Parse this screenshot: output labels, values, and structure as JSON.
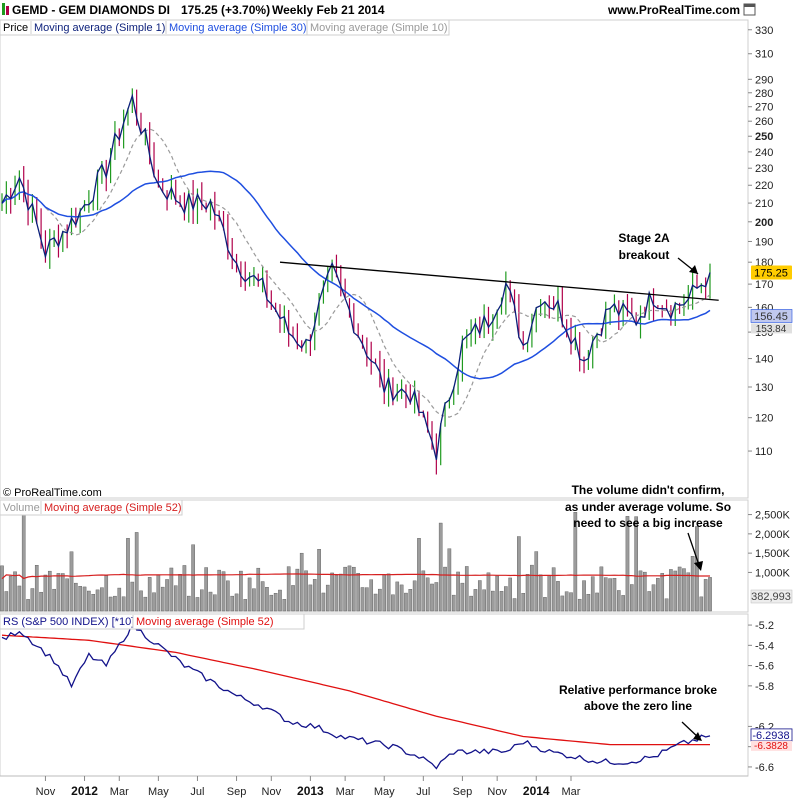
{
  "header": {
    "symbol_line": "GEMD - GEM DIAMONDS DI",
    "price_change": "175.25 (+3.70%)",
    "period_date": "Weekly  Feb 21 2014",
    "site": "www.ProRealTime.com",
    "copyright": "© ProRealTime.com"
  },
  "colors": {
    "up_bar": "#1f9a1f",
    "down_bar": "#b0004a",
    "sma1": "#0b1f7a",
    "sma30": "#1f4fe0",
    "sma10": "#9a9a9a",
    "trendline": "#000000",
    "volume_bar": "#9c9c9c",
    "volume_ma": "#d62020",
    "rs_line": "#12128a",
    "rs_ma": "#e01010",
    "price_badge": "#ffcc00",
    "ma_badge": "#c0c8ee"
  },
  "chart_data": [
    {
      "type": "candlestick",
      "panel": "price",
      "legend": [
        "Price",
        "Moving average (Simple 1)",
        "Moving average (Simple 30)",
        "Moving average (Simple 10)"
      ],
      "y_ticks": [
        110,
        120,
        130,
        140,
        150,
        160,
        170,
        180,
        190,
        200,
        210,
        220,
        230,
        240,
        250,
        260,
        270,
        280,
        290,
        310,
        330
      ],
      "y_tick_labels": [
        "110",
        "120",
        "130",
        "140",
        "150",
        "160",
        "170",
        "180",
        "190",
        "200",
        "210",
        "220",
        "230",
        "240",
        "250",
        "260",
        "270",
        "280",
        "290",
        "310",
        "330"
      ],
      "ylim": [
        102,
        335
      ],
      "scale": "log",
      "last_price": "175.25",
      "sma30_last": "156.45",
      "sma10_last": "153.84",
      "key_points": {
        "x_week": [
          0,
          4,
          10,
          18,
          24,
          30,
          36,
          42,
          48,
          54,
          60,
          66,
          70,
          76,
          82,
          88,
          94,
          100,
          106,
          112,
          116,
          120,
          124,
          128,
          134,
          140,
          146,
          150,
          154,
          158,
          163
        ],
        "close": [
          210,
          225,
          185,
          205,
          230,
          275,
          220,
          210,
          210,
          180,
          168,
          150,
          145,
          175,
          150,
          130,
          128,
          110,
          145,
          155,
          170,
          145,
          165,
          160,
          140,
          160,
          155,
          165,
          160,
          163,
          175.25
        ]
      },
      "trendline": {
        "from_week": 64,
        "from_value": 180,
        "to_week": 165,
        "to_value": 163
      },
      "annotation": "Stage 2A\nbreakout"
    },
    {
      "type": "bar",
      "panel": "volume",
      "legend": [
        "Volume",
        "Moving average (Simple 52)"
      ],
      "y_ticks": [
        1000000,
        1500000,
        2000000,
        2500000
      ],
      "y_tick_labels": [
        "1,000K",
        "1,500K",
        "2,000K",
        "2,500K"
      ],
      "ylim": [
        0,
        2800000
      ],
      "last_volume_label": "382,993",
      "volume_ma_level": 950000,
      "annotation": "The volume didn't confirm,\nas under average volume. So\nneed to see a big increase"
    },
    {
      "type": "line",
      "panel": "relative-strength",
      "legend": [
        "RS (S&P 500 INDEX) [*10]",
        "Moving average (Simple 52)"
      ],
      "y_ticks": [
        -6.6,
        -6.4,
        -6.2,
        -5.8,
        -5.6,
        -5.4,
        -5.2
      ],
      "y_tick_labels": [
        "-6.6",
        "-6.4",
        "-6.2",
        "-5.8",
        "-5.6",
        "-5.4",
        "-5.2"
      ],
      "ylim": [
        -6.65,
        -5.15
      ],
      "last_rs": "-6.2938",
      "last_rs_ma": "-6.3828",
      "rs_key_points": {
        "x_week": [
          0,
          4,
          8,
          12,
          16,
          20,
          24,
          30,
          36,
          42,
          48,
          54,
          60,
          66,
          72,
          78,
          84,
          90,
          96,
          100,
          104,
          110,
          116,
          120,
          126,
          132,
          138,
          144,
          150,
          156,
          163
        ],
        "value": [
          -5.35,
          -5.25,
          -5.4,
          -5.55,
          -5.8,
          -5.5,
          -5.6,
          -5.2,
          -5.4,
          -5.6,
          -5.75,
          -5.9,
          -6.0,
          -6.15,
          -6.2,
          -6.3,
          -6.35,
          -6.4,
          -6.5,
          -6.6,
          -6.45,
          -6.45,
          -6.45,
          -6.35,
          -6.45,
          -6.5,
          -6.55,
          -6.55,
          -6.5,
          -6.38,
          -6.29
        ]
      },
      "rs_ma_key_points": {
        "x_week": [
          0,
          20,
          40,
          60,
          80,
          100,
          120,
          140,
          163
        ],
        "value": [
          -5.3,
          -5.35,
          -5.47,
          -5.65,
          -5.85,
          -6.1,
          -6.3,
          -6.38,
          -6.38
        ]
      },
      "annotation": "Relative performance broke\nabove the zero line"
    }
  ],
  "x_axis": {
    "labels": [
      {
        "text": "Nov",
        "week": 10,
        "year": false
      },
      {
        "text": "2012",
        "week": 19,
        "year": true
      },
      {
        "text": "Mar",
        "week": 27,
        "year": false
      },
      {
        "text": "May",
        "week": 36,
        "year": false
      },
      {
        "text": "Jul",
        "week": 45,
        "year": false
      },
      {
        "text": "Sep",
        "week": 54,
        "year": false
      },
      {
        "text": "Nov",
        "week": 62,
        "year": false
      },
      {
        "text": "2013",
        "week": 71,
        "year": true
      },
      {
        "text": "Mar",
        "week": 79,
        "year": false
      },
      {
        "text": "May",
        "week": 88,
        "year": false
      },
      {
        "text": "Jul",
        "week": 97,
        "year": false
      },
      {
        "text": "Sep",
        "week": 106,
        "year": false
      },
      {
        "text": "Nov",
        "week": 114,
        "year": false
      },
      {
        "text": "2014",
        "week": 123,
        "year": true
      },
      {
        "text": "Mar",
        "week": 131,
        "year": false
      }
    ]
  }
}
